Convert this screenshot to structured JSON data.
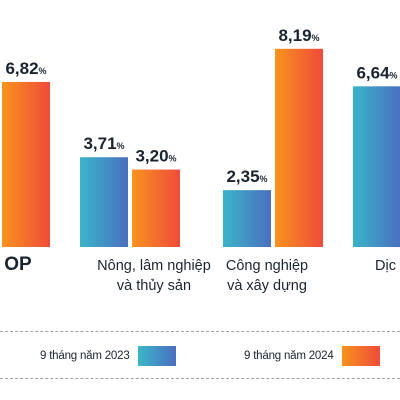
{
  "chart_data": {
    "type": "bar",
    "categories": [
      "GDP",
      "Nông, lâm nghiệp\nvà thủy sản",
      "Công nghiệp\nvà xây dựng",
      "Dịch vụ"
    ],
    "category_labels_visible": [
      "OP",
      "Nông, lâm nghiệp|và thủy sản",
      "Công nghiệp|và xây dựng",
      "Dịc"
    ],
    "series": [
      {
        "name": "9 tháng năm 2023",
        "values": [
          null,
          3.71,
          2.35,
          6.64
        ],
        "color": "#3aa8c8"
      },
      {
        "name": "9 tháng năm 2024",
        "values": [
          6.82,
          3.2,
          8.19,
          null
        ],
        "color": "#f26a2e"
      }
    ],
    "value_labels": {
      "2023": [
        null,
        "3,71",
        "2,35",
        "6,64"
      ],
      "2024": [
        "6,82",
        "3,20",
        "8,19",
        null
      ]
    },
    "unit_suffix": "%",
    "ylim": [
      0,
      9
    ]
  },
  "legend": {
    "items": [
      {
        "label": "9 tháng năm 2023",
        "key": "2023"
      },
      {
        "label": "9 tháng năm 2024",
        "key": "2024"
      }
    ]
  },
  "colors": {
    "series_2023_start": "#3ab5c9",
    "series_2023_end": "#4a6fbf",
    "series_2024_start": "#f7931e",
    "series_2024_end": "#ef4b3a",
    "text": "#1a2430"
  }
}
